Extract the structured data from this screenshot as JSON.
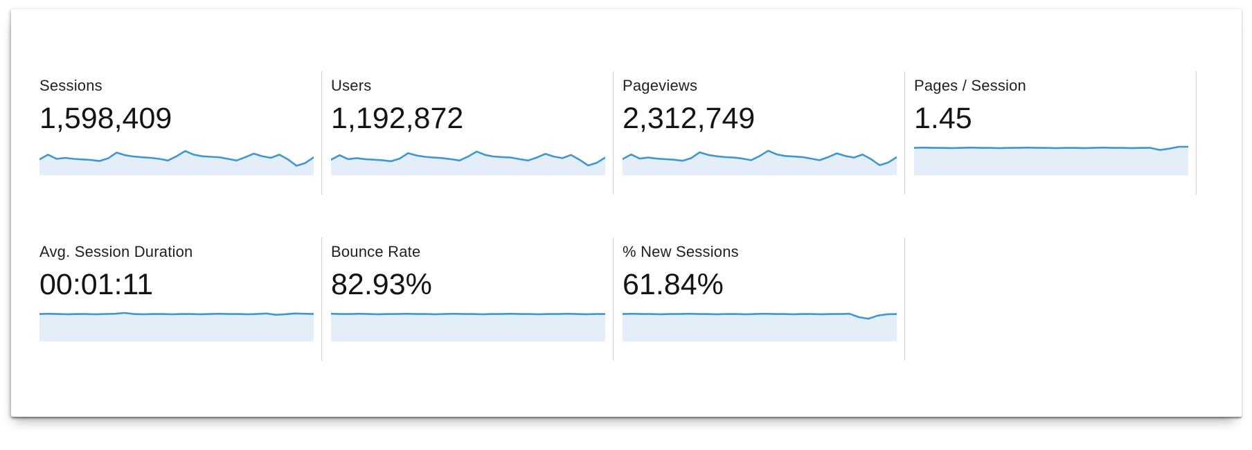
{
  "colors": {
    "spark_line": "#3e96d2",
    "spark_fill": "#e4eef8",
    "divider": "#cdcdcd",
    "label_text": "#1f1f1f",
    "value_text": "#141414",
    "panel_bg": "#ffffff"
  },
  "metrics": {
    "sessions": {
      "label": "Sessions",
      "value": "1,598,409",
      "spark": [
        0.44,
        0.62,
        0.46,
        0.5,
        0.46,
        0.44,
        0.42,
        0.38,
        0.48,
        0.7,
        0.6,
        0.55,
        0.52,
        0.5,
        0.46,
        0.4,
        0.56,
        0.76,
        0.62,
        0.56,
        0.54,
        0.52,
        0.46,
        0.4,
        0.52,
        0.66,
        0.56,
        0.5,
        0.62,
        0.44,
        0.2,
        0.3,
        0.52
      ]
    },
    "users": {
      "label": "Users",
      "value": "1,192,872",
      "spark": [
        0.43,
        0.6,
        0.45,
        0.49,
        0.45,
        0.43,
        0.41,
        0.37,
        0.47,
        0.68,
        0.59,
        0.54,
        0.51,
        0.49,
        0.45,
        0.4,
        0.55,
        0.74,
        0.61,
        0.55,
        0.53,
        0.51,
        0.45,
        0.4,
        0.51,
        0.65,
        0.55,
        0.49,
        0.61,
        0.43,
        0.21,
        0.31,
        0.51
      ]
    },
    "pageviews": {
      "label": "Pageviews",
      "value": "2,312,749",
      "spark": [
        0.45,
        0.63,
        0.47,
        0.51,
        0.47,
        0.45,
        0.43,
        0.39,
        0.49,
        0.71,
        0.61,
        0.56,
        0.53,
        0.51,
        0.47,
        0.41,
        0.57,
        0.77,
        0.63,
        0.57,
        0.55,
        0.53,
        0.47,
        0.41,
        0.53,
        0.67,
        0.57,
        0.51,
        0.63,
        0.45,
        0.22,
        0.32,
        0.53
      ]
    },
    "pages_per_session": {
      "label": "Pages / Session",
      "value": "1.45",
      "spark": [
        0.88,
        0.89,
        0.88,
        0.88,
        0.87,
        0.88,
        0.89,
        0.88,
        0.88,
        0.87,
        0.88,
        0.88,
        0.89,
        0.88,
        0.88,
        0.87,
        0.88,
        0.88,
        0.87,
        0.88,
        0.89,
        0.88,
        0.88,
        0.87,
        0.88,
        0.88,
        0.8,
        0.85,
        0.92,
        0.92
      ]
    },
    "avg_session_duration": {
      "label": "Avg. Session Duration",
      "value": "00:01:11",
      "spark": [
        0.88,
        0.89,
        0.88,
        0.87,
        0.88,
        0.88,
        0.87,
        0.88,
        0.89,
        0.92,
        0.88,
        0.87,
        0.88,
        0.88,
        0.87,
        0.88,
        0.88,
        0.87,
        0.88,
        0.89,
        0.88,
        0.88,
        0.87,
        0.88,
        0.9,
        0.85,
        0.87,
        0.9,
        0.89,
        0.88
      ]
    },
    "bounce_rate": {
      "label": "Bounce Rate",
      "value": "82.93%",
      "spark": [
        0.89,
        0.88,
        0.88,
        0.89,
        0.88,
        0.87,
        0.88,
        0.88,
        0.89,
        0.88,
        0.88,
        0.87,
        0.88,
        0.89,
        0.88,
        0.88,
        0.87,
        0.88,
        0.88,
        0.89,
        0.88,
        0.88,
        0.87,
        0.88,
        0.88,
        0.89,
        0.88,
        0.87,
        0.88,
        0.88
      ]
    },
    "percent_new_sessions": {
      "label": "% New Sessions",
      "value": "61.84%",
      "spark": [
        0.88,
        0.89,
        0.88,
        0.88,
        0.87,
        0.88,
        0.88,
        0.89,
        0.88,
        0.88,
        0.87,
        0.88,
        0.88,
        0.87,
        0.88,
        0.89,
        0.88,
        0.88,
        0.87,
        0.88,
        0.88,
        0.87,
        0.88,
        0.88,
        0.89,
        0.76,
        0.7,
        0.82,
        0.87,
        0.88
      ]
    }
  },
  "chart_data": [
    {
      "type": "area",
      "title": "Sessions",
      "total": "1,598,409",
      "values_normalized": true,
      "values": [
        0.44,
        0.62,
        0.46,
        0.5,
        0.46,
        0.44,
        0.42,
        0.38,
        0.48,
        0.7,
        0.6,
        0.55,
        0.52,
        0.5,
        0.46,
        0.4,
        0.56,
        0.76,
        0.62,
        0.56,
        0.54,
        0.52,
        0.46,
        0.4,
        0.52,
        0.66,
        0.56,
        0.5,
        0.62,
        0.44,
        0.2,
        0.3,
        0.52
      ],
      "xlabel": "",
      "ylabel": "",
      "grid": false,
      "legend": false
    },
    {
      "type": "area",
      "title": "Users",
      "total": "1,192,872",
      "values_normalized": true,
      "values": [
        0.43,
        0.6,
        0.45,
        0.49,
        0.45,
        0.43,
        0.41,
        0.37,
        0.47,
        0.68,
        0.59,
        0.54,
        0.51,
        0.49,
        0.45,
        0.4,
        0.55,
        0.74,
        0.61,
        0.55,
        0.53,
        0.51,
        0.45,
        0.4,
        0.51,
        0.65,
        0.55,
        0.49,
        0.61,
        0.43,
        0.21,
        0.31,
        0.51
      ],
      "xlabel": "",
      "ylabel": "",
      "grid": false,
      "legend": false
    },
    {
      "type": "area",
      "title": "Pageviews",
      "total": "2,312,749",
      "values_normalized": true,
      "values": [
        0.45,
        0.63,
        0.47,
        0.51,
        0.47,
        0.45,
        0.43,
        0.39,
        0.49,
        0.71,
        0.61,
        0.56,
        0.53,
        0.51,
        0.47,
        0.41,
        0.57,
        0.77,
        0.63,
        0.57,
        0.55,
        0.53,
        0.47,
        0.41,
        0.53,
        0.67,
        0.57,
        0.51,
        0.63,
        0.45,
        0.22,
        0.32,
        0.53
      ],
      "xlabel": "",
      "ylabel": "",
      "grid": false,
      "legend": false
    },
    {
      "type": "area",
      "title": "Pages / Session",
      "total": "1.45",
      "values_normalized": true,
      "values": [
        0.88,
        0.89,
        0.88,
        0.88,
        0.87,
        0.88,
        0.89,
        0.88,
        0.88,
        0.87,
        0.88,
        0.88,
        0.89,
        0.88,
        0.88,
        0.87,
        0.88,
        0.88,
        0.87,
        0.88,
        0.89,
        0.88,
        0.88,
        0.87,
        0.88,
        0.88,
        0.8,
        0.85,
        0.92,
        0.92
      ],
      "xlabel": "",
      "ylabel": "",
      "grid": false,
      "legend": false
    },
    {
      "type": "area",
      "title": "Avg. Session Duration",
      "total": "00:01:11",
      "values_normalized": true,
      "values": [
        0.88,
        0.89,
        0.88,
        0.87,
        0.88,
        0.88,
        0.87,
        0.88,
        0.89,
        0.92,
        0.88,
        0.87,
        0.88,
        0.88,
        0.87,
        0.88,
        0.88,
        0.87,
        0.88,
        0.89,
        0.88,
        0.88,
        0.87,
        0.88,
        0.9,
        0.85,
        0.87,
        0.9,
        0.89,
        0.88
      ],
      "xlabel": "",
      "ylabel": "",
      "grid": false,
      "legend": false
    },
    {
      "type": "area",
      "title": "Bounce Rate",
      "total": "82.93%",
      "values_normalized": true,
      "values": [
        0.89,
        0.88,
        0.88,
        0.89,
        0.88,
        0.87,
        0.88,
        0.88,
        0.89,
        0.88,
        0.88,
        0.87,
        0.88,
        0.89,
        0.88,
        0.88,
        0.87,
        0.88,
        0.88,
        0.89,
        0.88,
        0.88,
        0.87,
        0.88,
        0.88,
        0.89,
        0.88,
        0.87,
        0.88,
        0.88
      ],
      "xlabel": "",
      "ylabel": "",
      "grid": false,
      "legend": false
    },
    {
      "type": "area",
      "title": "% New Sessions",
      "total": "61.84%",
      "values_normalized": true,
      "values": [
        0.88,
        0.89,
        0.88,
        0.88,
        0.87,
        0.88,
        0.88,
        0.89,
        0.88,
        0.88,
        0.87,
        0.88,
        0.88,
        0.87,
        0.88,
        0.89,
        0.88,
        0.88,
        0.87,
        0.88,
        0.88,
        0.87,
        0.88,
        0.88,
        0.89,
        0.76,
        0.7,
        0.82,
        0.87,
        0.88
      ],
      "xlabel": "",
      "ylabel": "",
      "grid": false,
      "legend": false
    }
  ]
}
